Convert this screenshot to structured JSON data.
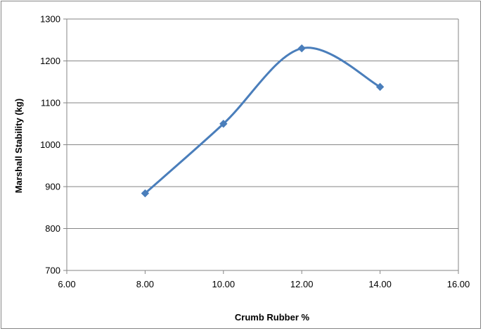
{
  "chart_data": {
    "type": "scatter",
    "x": [
      8.0,
      10.0,
      12.0,
      14.0
    ],
    "y": [
      884,
      1050,
      1230,
      1138
    ],
    "xlabel": "Crumb Rubber %",
    "ylabel": "Marshall Stability (kg)",
    "xlim": [
      6.0,
      16.0
    ],
    "ylim": [
      700,
      1300
    ],
    "x_ticks": [
      "6.00",
      "8.00",
      "10.00",
      "12.00",
      "14.00",
      "16.00"
    ],
    "y_ticks": [
      "700",
      "800",
      "900",
      "1000",
      "1100",
      "1200",
      "1300"
    ],
    "grid": "horizontal",
    "legend": "none",
    "line_style": "smoothed line with diamond markers",
    "series_color": "#4a7ebb"
  }
}
